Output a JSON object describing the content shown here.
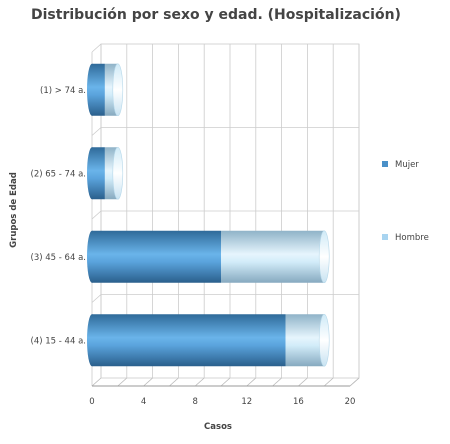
{
  "chart_data": {
    "type": "bar",
    "orientation": "horizontal",
    "stacked": true,
    "title": "Distribución por sexo y edad. (Hospitalización)",
    "xlabel": "Casos",
    "ylabel": "Grupos de Edad",
    "categories": [
      "(1) > 74 a.",
      "(2) 65 - 74 a.",
      "(3) 45 - 64 a.",
      "(4) 15 - 44 a."
    ],
    "series": [
      {
        "name": "Mujer",
        "values": [
          1,
          1,
          10,
          15
        ],
        "color": "#4a90c8"
      },
      {
        "name": "Hombre",
        "values": [
          1,
          1,
          8,
          3
        ],
        "color": "#a8d4f0"
      }
    ],
    "xlim": [
      0,
      20
    ],
    "xticks": [
      0,
      4,
      8,
      12,
      16,
      20
    ],
    "grid": true,
    "legend_position": "right"
  }
}
